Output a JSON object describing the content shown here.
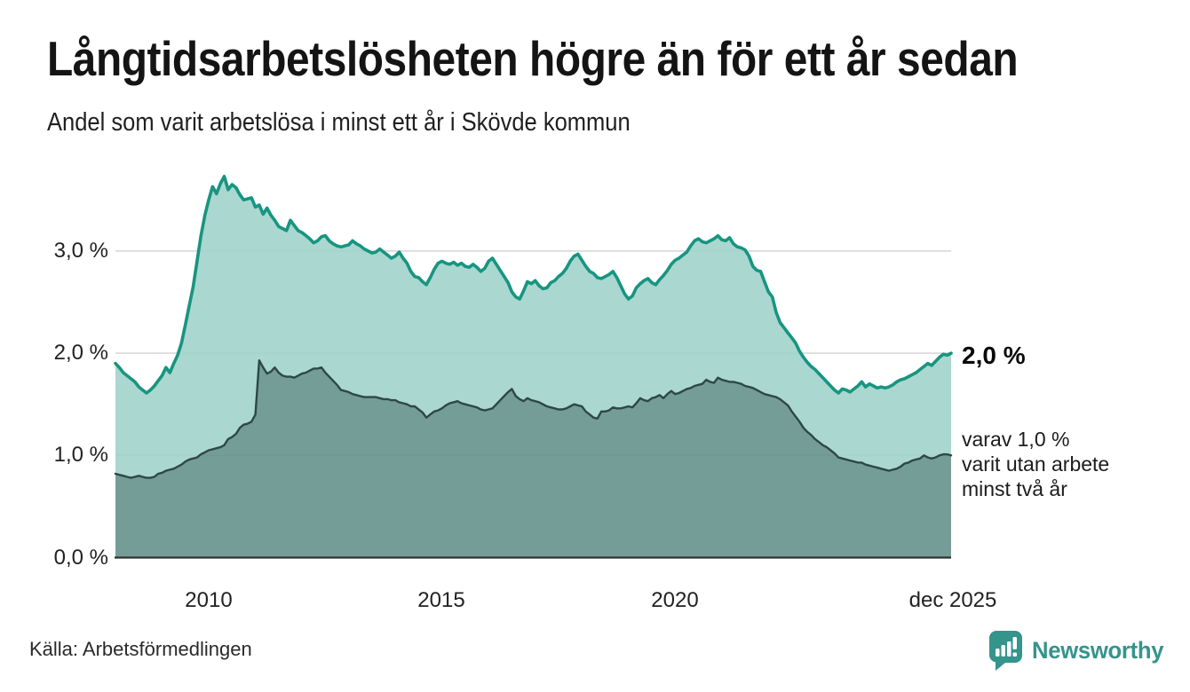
{
  "header": {
    "title": "Långtidsarbetslösheten högre än för ett år sedan",
    "subtitle": "Andel som varit arbetslösa i minst ett år i Skövde kommun"
  },
  "annotations": {
    "latest_total_label": "2,0 %",
    "sub_lines": [
      "varav 1,0 %",
      "varit utan arbete",
      "minst två år"
    ]
  },
  "footer": {
    "source": "Källa: Arbetsförmedlingen",
    "brand_name": "Newsworthy",
    "brand_icon": "speech-bubble-bar-chart-icon"
  },
  "colors": {
    "total_line": "#179580",
    "total_fill": "#9ed1c9",
    "two_year_line": "#2d4846",
    "two_year_fill": "#628f89",
    "gridline": "#d8d8d8",
    "axis_line": "#2d3330",
    "brand_teal": "#35948b",
    "text_dark": "#141414"
  },
  "chart_data": {
    "type": "area",
    "title": "Långtidsarbetslösheten högre än för ett år sedan",
    "subtitle": "Andel som varit arbetslösa i minst ett år i Skövde kommun",
    "unit": "percent",
    "x_axis": {
      "start": "2008-01",
      "end": "2025-12",
      "interval": "month",
      "tick_labels": [
        "2010",
        "2015",
        "2020",
        "dec 2025"
      ],
      "tick_month_index": [
        24,
        84,
        144,
        215
      ]
    },
    "y_axis": {
      "tick_labels": [
        "0,0 %",
        "1,0 %",
        "2,0 %",
        "3,0 %"
      ],
      "range": [
        0,
        3.8
      ],
      "gridline_values": [
        1.0,
        2.0,
        3.0
      ],
      "baseline_value": 0.0,
      "grid": true
    },
    "legend_position": "right-annotations",
    "series": [
      {
        "name": "Andel som varit arbetslösa i minst ett år",
        "end_value_label": "2,0 %",
        "end_value": 2.0,
        "values": [
          1.9,
          1.86,
          1.81,
          1.78,
          1.75,
          1.72,
          1.67,
          1.64,
          1.61,
          1.64,
          1.68,
          1.73,
          1.78,
          1.86,
          1.81,
          1.9,
          1.98,
          2.1,
          2.28,
          2.47,
          2.65,
          2.9,
          3.15,
          3.35,
          3.5,
          3.63,
          3.56,
          3.66,
          3.73,
          3.6,
          3.65,
          3.62,
          3.55,
          3.5,
          3.51,
          3.52,
          3.43,
          3.45,
          3.36,
          3.42,
          3.35,
          3.3,
          3.24,
          3.22,
          3.2,
          3.3,
          3.25,
          3.2,
          3.18,
          3.15,
          3.12,
          3.08,
          3.1,
          3.14,
          3.15,
          3.1,
          3.07,
          3.05,
          3.04,
          3.05,
          3.06,
          3.1,
          3.07,
          3.05,
          3.02,
          3.0,
          2.98,
          2.99,
          3.02,
          2.99,
          2.96,
          2.93,
          2.95,
          2.99,
          2.93,
          2.88,
          2.8,
          2.75,
          2.74,
          2.7,
          2.67,
          2.74,
          2.82,
          2.88,
          2.9,
          2.88,
          2.87,
          2.89,
          2.86,
          2.88,
          2.85,
          2.84,
          2.87,
          2.84,
          2.8,
          2.83,
          2.9,
          2.93,
          2.87,
          2.81,
          2.75,
          2.69,
          2.6,
          2.55,
          2.53,
          2.61,
          2.7,
          2.68,
          2.71,
          2.66,
          2.63,
          2.64,
          2.69,
          2.71,
          2.75,
          2.78,
          2.83,
          2.9,
          2.95,
          2.97,
          2.91,
          2.85,
          2.8,
          2.78,
          2.74,
          2.73,
          2.75,
          2.77,
          2.8,
          2.74,
          2.66,
          2.58,
          2.53,
          2.56,
          2.64,
          2.68,
          2.71,
          2.73,
          2.69,
          2.67,
          2.72,
          2.76,
          2.81,
          2.87,
          2.91,
          2.93,
          2.96,
          2.99,
          3.05,
          3.1,
          3.12,
          3.09,
          3.08,
          3.1,
          3.12,
          3.15,
          3.11,
          3.1,
          3.13,
          3.07,
          3.04,
          3.03,
          3.01,
          2.95,
          2.85,
          2.81,
          2.8,
          2.7,
          2.6,
          2.55,
          2.4,
          2.3,
          2.25,
          2.2,
          2.15,
          2.1,
          2.02,
          1.96,
          1.91,
          1.87,
          1.84,
          1.8,
          1.76,
          1.72,
          1.68,
          1.64,
          1.61,
          1.65,
          1.64,
          1.62,
          1.65,
          1.68,
          1.72,
          1.67,
          1.7,
          1.68,
          1.66,
          1.67,
          1.66,
          1.67,
          1.69,
          1.72,
          1.74,
          1.75,
          1.77,
          1.79,
          1.81,
          1.84,
          1.87,
          1.9,
          1.88,
          1.92,
          1.96,
          1.99,
          1.98,
          2.0
        ]
      },
      {
        "name": "varav utan arbete minst två år",
        "end_value_label": "varav 1,0 % varit utan arbete minst två år",
        "end_value": 1.0,
        "values": [
          0.82,
          0.81,
          0.8,
          0.79,
          0.78,
          0.79,
          0.8,
          0.79,
          0.78,
          0.78,
          0.79,
          0.82,
          0.83,
          0.85,
          0.86,
          0.87,
          0.89,
          0.91,
          0.94,
          0.96,
          0.97,
          0.98,
          1.01,
          1.03,
          1.05,
          1.06,
          1.07,
          1.08,
          1.1,
          1.16,
          1.18,
          1.21,
          1.27,
          1.3,
          1.31,
          1.33,
          1.4,
          1.93,
          1.86,
          1.8,
          1.82,
          1.86,
          1.81,
          1.78,
          1.77,
          1.77,
          1.76,
          1.78,
          1.8,
          1.81,
          1.83,
          1.85,
          1.85,
          1.86,
          1.81,
          1.77,
          1.73,
          1.69,
          1.64,
          1.63,
          1.62,
          1.6,
          1.59,
          1.58,
          1.57,
          1.57,
          1.57,
          1.57,
          1.56,
          1.55,
          1.55,
          1.54,
          1.54,
          1.52,
          1.51,
          1.5,
          1.48,
          1.48,
          1.45,
          1.42,
          1.37,
          1.4,
          1.43,
          1.44,
          1.46,
          1.49,
          1.51,
          1.52,
          1.53,
          1.51,
          1.5,
          1.49,
          1.48,
          1.47,
          1.45,
          1.44,
          1.45,
          1.46,
          1.5,
          1.54,
          1.58,
          1.62,
          1.65,
          1.58,
          1.55,
          1.53,
          1.56,
          1.54,
          1.53,
          1.52,
          1.5,
          1.48,
          1.47,
          1.46,
          1.45,
          1.45,
          1.46,
          1.48,
          1.5,
          1.49,
          1.48,
          1.43,
          1.4,
          1.37,
          1.36,
          1.43,
          1.43,
          1.44,
          1.47,
          1.46,
          1.46,
          1.47,
          1.48,
          1.47,
          1.51,
          1.56,
          1.54,
          1.53,
          1.56,
          1.57,
          1.59,
          1.56,
          1.6,
          1.63,
          1.6,
          1.61,
          1.63,
          1.65,
          1.66,
          1.68,
          1.69,
          1.7,
          1.74,
          1.72,
          1.71,
          1.76,
          1.74,
          1.73,
          1.72,
          1.72,
          1.71,
          1.7,
          1.68,
          1.67,
          1.66,
          1.64,
          1.62,
          1.6,
          1.59,
          1.58,
          1.57,
          1.55,
          1.52,
          1.49,
          1.43,
          1.38,
          1.33,
          1.27,
          1.23,
          1.2,
          1.16,
          1.13,
          1.1,
          1.08,
          1.05,
          1.02,
          0.98,
          0.97,
          0.96,
          0.95,
          0.94,
          0.93,
          0.93,
          0.91,
          0.9,
          0.89,
          0.88,
          0.87,
          0.86,
          0.85,
          0.86,
          0.87,
          0.89,
          0.92,
          0.93,
          0.95,
          0.96,
          0.97,
          1.0,
          0.98,
          0.97,
          0.98,
          1.0,
          1.01,
          1.01,
          1.0
        ]
      }
    ]
  }
}
